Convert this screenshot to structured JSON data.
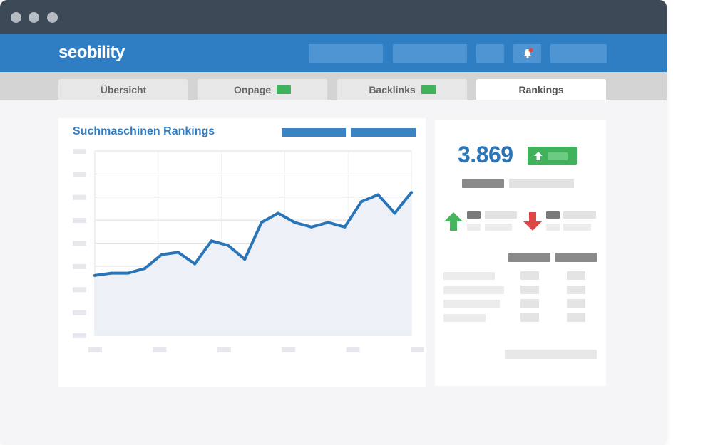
{
  "app": {
    "logo_text": "seobility",
    "colors": {
      "brand_blue": "#2f7ec4",
      "titlebar": "#3c4a57",
      "positive": "#3fb25b",
      "negative": "#e04646"
    }
  },
  "tabs": [
    {
      "label": "Übersicht",
      "flag": false,
      "active": false
    },
    {
      "label": "Onpage",
      "flag": true,
      "active": false
    },
    {
      "label": "Backlinks",
      "flag": true,
      "active": false
    },
    {
      "label": "Rankings",
      "flag": false,
      "active": true
    }
  ],
  "chart": {
    "title": "Suchmaschinen Rankings"
  },
  "chart_data": {
    "type": "area",
    "title": "Suchmaschinen Rankings",
    "xlabel": "",
    "ylabel": "",
    "ylim": [
      0,
      8
    ],
    "grid": true,
    "legend": "none",
    "x": [
      0,
      1,
      2,
      3,
      4,
      5,
      6,
      7,
      8,
      9,
      10,
      11,
      12,
      13,
      14,
      15,
      16,
      17,
      18,
      19
    ],
    "values": [
      2.6,
      2.7,
      2.7,
      2.9,
      3.5,
      3.6,
      3.1,
      4.1,
      3.9,
      3.3,
      4.9,
      5.3,
      4.9,
      4.7,
      4.9,
      4.7,
      5.8,
      6.1,
      5.3,
      6.2
    ],
    "line_color": "#2a75b8",
    "fill_color": "#eef0f7"
  },
  "stats": {
    "score": "3.869",
    "trend": "up",
    "up_icon": "arrow-up-icon",
    "down_icon": "arrow-down-icon"
  }
}
